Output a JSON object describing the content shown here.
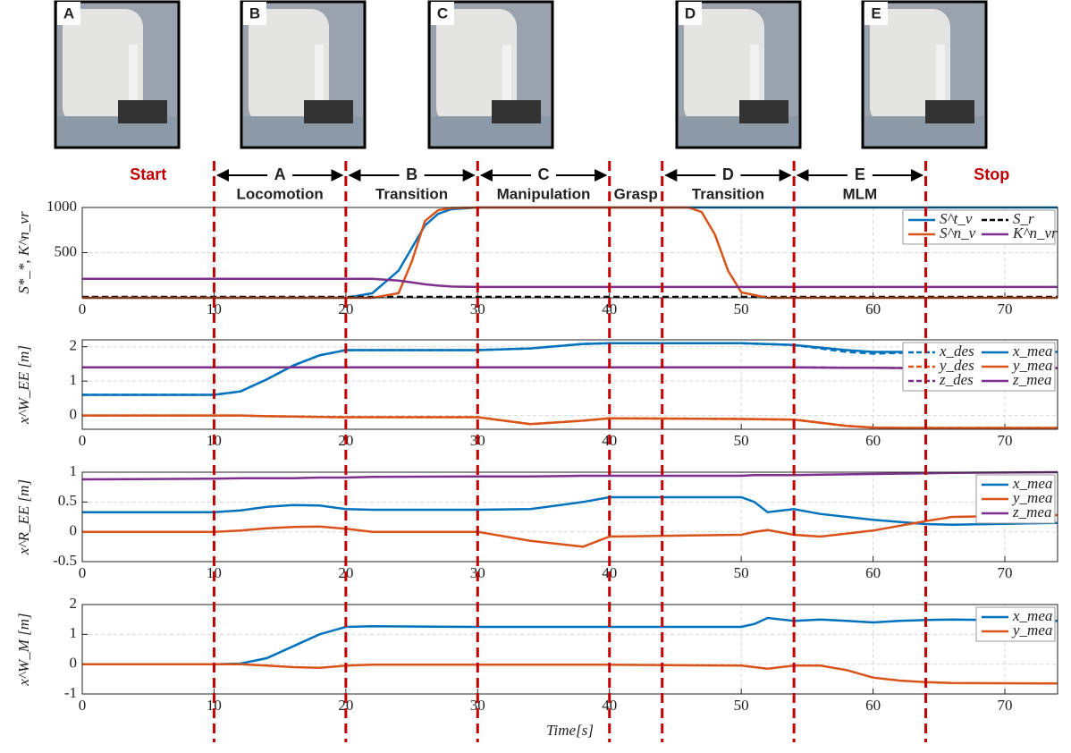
{
  "photos": [
    "A",
    "B",
    "C",
    "D",
    "E"
  ],
  "annotations": {
    "start": "Start",
    "stop": "Stop",
    "grasp": "Grasp",
    "phases": [
      {
        "letter": "A",
        "name": "Locomotion"
      },
      {
        "letter": "B",
        "name": "Transition"
      },
      {
        "letter": "C",
        "name": "Manipulation"
      },
      {
        "letter": "D",
        "name": "Transition"
      },
      {
        "letter": "E",
        "name": "MLM"
      }
    ]
  },
  "phase_lines": [
    10,
    20,
    30,
    40,
    44,
    54,
    64
  ],
  "chart_data": [
    {
      "type": "line",
      "ylabel": "S*_*, K^n_vr",
      "x": [
        0,
        10,
        20,
        22,
        24,
        25,
        26,
        27,
        28,
        30,
        40,
        46,
        47,
        48,
        49,
        50,
        52,
        74
      ],
      "series": [
        {
          "name": "S^t_v",
          "color": "#0072BD",
          "dash": false,
          "values": [
            0,
            0,
            0,
            50,
            300,
            550,
            800,
            930,
            980,
            1000,
            1000,
            1000,
            1000,
            1000,
            1000,
            1000,
            1000,
            1000
          ]
        },
        {
          "name": "S_r",
          "color": "#000000",
          "dash": true,
          "values": [
            10,
            10,
            10,
            10,
            10,
            10,
            10,
            10,
            10,
            10,
            10,
            10,
            10,
            10,
            10,
            10,
            10,
            10
          ]
        },
        {
          "name": "S^n_v",
          "color": "#D95319",
          "dash": false,
          "values": [
            0,
            0,
            0,
            0,
            50,
            400,
            850,
            970,
            995,
            1000,
            1000,
            1000,
            950,
            700,
            300,
            60,
            0,
            0
          ]
        },
        {
          "name": "K^n_vr",
          "color": "#7E2F8E",
          "dash": false,
          "values": [
            210,
            210,
            210,
            210,
            190,
            170,
            150,
            135,
            125,
            120,
            120,
            120,
            120,
            120,
            120,
            120,
            120,
            120
          ]
        }
      ],
      "xlim": [
        0,
        74
      ],
      "xticks": [
        0,
        10,
        20,
        30,
        40,
        50,
        60,
        70
      ],
      "ylim": [
        0,
        1000
      ],
      "yticks": [
        500,
        1000
      ],
      "grid": true,
      "legend": "upper right"
    },
    {
      "type": "line",
      "ylabel": "x^W_EE [m]",
      "x": [
        0,
        10,
        12,
        14,
        16,
        18,
        20,
        30,
        34,
        38,
        40,
        50,
        54,
        58,
        60,
        62,
        74
      ],
      "series": [
        {
          "name": "x_des",
          "color": "#0072BD",
          "dash": true,
          "values": [
            0.6,
            0.6,
            0.7,
            1.05,
            1.45,
            1.75,
            1.9,
            1.9,
            1.95,
            2.08,
            2.1,
            2.1,
            2.05,
            1.85,
            1.8,
            1.82,
            1.85
          ]
        },
        {
          "name": "x_mea",
          "color": "#0072BD",
          "dash": false,
          "values": [
            0.6,
            0.6,
            0.7,
            1.05,
            1.45,
            1.75,
            1.9,
            1.9,
            1.95,
            2.08,
            2.1,
            2.1,
            2.05,
            1.9,
            1.85,
            1.85,
            1.85
          ]
        },
        {
          "name": "y_des",
          "color": "#D95319",
          "dash": true,
          "values": [
            0,
            0,
            0,
            -0.02,
            -0.03,
            -0.04,
            -0.05,
            -0.05,
            -0.25,
            -0.15,
            -0.08,
            -0.1,
            -0.12,
            -0.3,
            -0.35,
            -0.36,
            -0.36
          ]
        },
        {
          "name": "y_mea",
          "color": "#D95319",
          "dash": false,
          "values": [
            0,
            0,
            0,
            -0.02,
            -0.03,
            -0.04,
            -0.05,
            -0.05,
            -0.25,
            -0.15,
            -0.08,
            -0.1,
            -0.12,
            -0.3,
            -0.35,
            -0.36,
            -0.36
          ]
        },
        {
          "name": "z_des",
          "color": "#7E2F8E",
          "dash": true,
          "values": [
            1.4,
            1.4,
            1.4,
            1.4,
            1.4,
            1.4,
            1.4,
            1.4,
            1.4,
            1.4,
            1.4,
            1.4,
            1.4,
            1.39,
            1.39,
            1.38,
            1.38
          ]
        },
        {
          "name": "z_mea",
          "color": "#7E2F8E",
          "dash": false,
          "values": [
            1.4,
            1.4,
            1.4,
            1.4,
            1.4,
            1.4,
            1.4,
            1.4,
            1.4,
            1.4,
            1.4,
            1.4,
            1.4,
            1.39,
            1.39,
            1.38,
            1.38
          ]
        }
      ],
      "xlim": [
        0,
        74
      ],
      "xticks": [
        0,
        10,
        20,
        30,
        40,
        50,
        60,
        70
      ],
      "ylim": [
        -0.4,
        2.2
      ],
      "yticks": [
        0,
        1,
        2
      ],
      "grid": true,
      "legend": "upper right"
    },
    {
      "type": "line",
      "ylabel": "x^R_EE [m]",
      "x": [
        0,
        10,
        12,
        14,
        16,
        18,
        20,
        22,
        30,
        34,
        38,
        40,
        50,
        51,
        52,
        54,
        56,
        60,
        64,
        66,
        74
      ],
      "series": [
        {
          "name": "x_mea",
          "color": "#0072BD",
          "dash": false,
          "values": [
            0.33,
            0.33,
            0.36,
            0.42,
            0.45,
            0.44,
            0.38,
            0.37,
            0.37,
            0.38,
            0.5,
            0.58,
            0.58,
            0.5,
            0.33,
            0.38,
            0.3,
            0.2,
            0.13,
            0.12,
            0.15
          ]
        },
        {
          "name": "y_mea",
          "color": "#D95319",
          "dash": false,
          "values": [
            0,
            0,
            0.02,
            0.06,
            0.08,
            0.09,
            0.05,
            0,
            0,
            -0.15,
            -0.25,
            -0.08,
            -0.05,
            0,
            0.03,
            -0.05,
            -0.08,
            0.02,
            0.18,
            0.25,
            0.28
          ]
        },
        {
          "name": "z_mea",
          "color": "#7E2F8E",
          "dash": false,
          "values": [
            0.88,
            0.89,
            0.9,
            0.9,
            0.9,
            0.91,
            0.91,
            0.92,
            0.93,
            0.93,
            0.94,
            0.94,
            0.94,
            0.95,
            0.95,
            0.95,
            0.96,
            0.97,
            0.98,
            0.99,
            1.0
          ]
        }
      ],
      "xlim": [
        0,
        74
      ],
      "xticks": [
        0,
        10,
        20,
        30,
        40,
        50,
        60,
        70
      ],
      "ylim": [
        -0.5,
        1
      ],
      "yticks": [
        -0.5,
        0,
        0.5,
        1
      ],
      "grid": true,
      "legend": "upper right"
    },
    {
      "type": "line",
      "ylabel": "x^W_M [m]",
      "xlabel": "Time[s]",
      "x": [
        0,
        10,
        12,
        14,
        16,
        18,
        20,
        22,
        30,
        40,
        50,
        51,
        52,
        54,
        56,
        58,
        60,
        62,
        64,
        66,
        74
      ],
      "series": [
        {
          "name": "x_mea",
          "color": "#0072BD",
          "dash": false,
          "values": [
            0,
            0,
            0.02,
            0.2,
            0.6,
            1.0,
            1.25,
            1.27,
            1.25,
            1.25,
            1.25,
            1.35,
            1.55,
            1.45,
            1.5,
            1.45,
            1.4,
            1.45,
            1.48,
            1.5,
            1.45
          ]
        },
        {
          "name": "y_mea",
          "color": "#D95319",
          "dash": false,
          "values": [
            0,
            0,
            0,
            -0.05,
            -0.1,
            -0.12,
            -0.05,
            -0.02,
            -0.02,
            -0.02,
            -0.05,
            -0.1,
            -0.15,
            -0.05,
            -0.05,
            -0.2,
            -0.45,
            -0.55,
            -0.6,
            -0.63,
            -0.65
          ]
        }
      ],
      "xlim": [
        0,
        74
      ],
      "xticks": [
        0,
        10,
        20,
        30,
        40,
        50,
        60,
        70
      ],
      "ylim": [
        -1,
        2
      ],
      "yticks": [
        -1,
        0,
        1,
        2
      ],
      "grid": true,
      "legend": "upper right"
    }
  ]
}
